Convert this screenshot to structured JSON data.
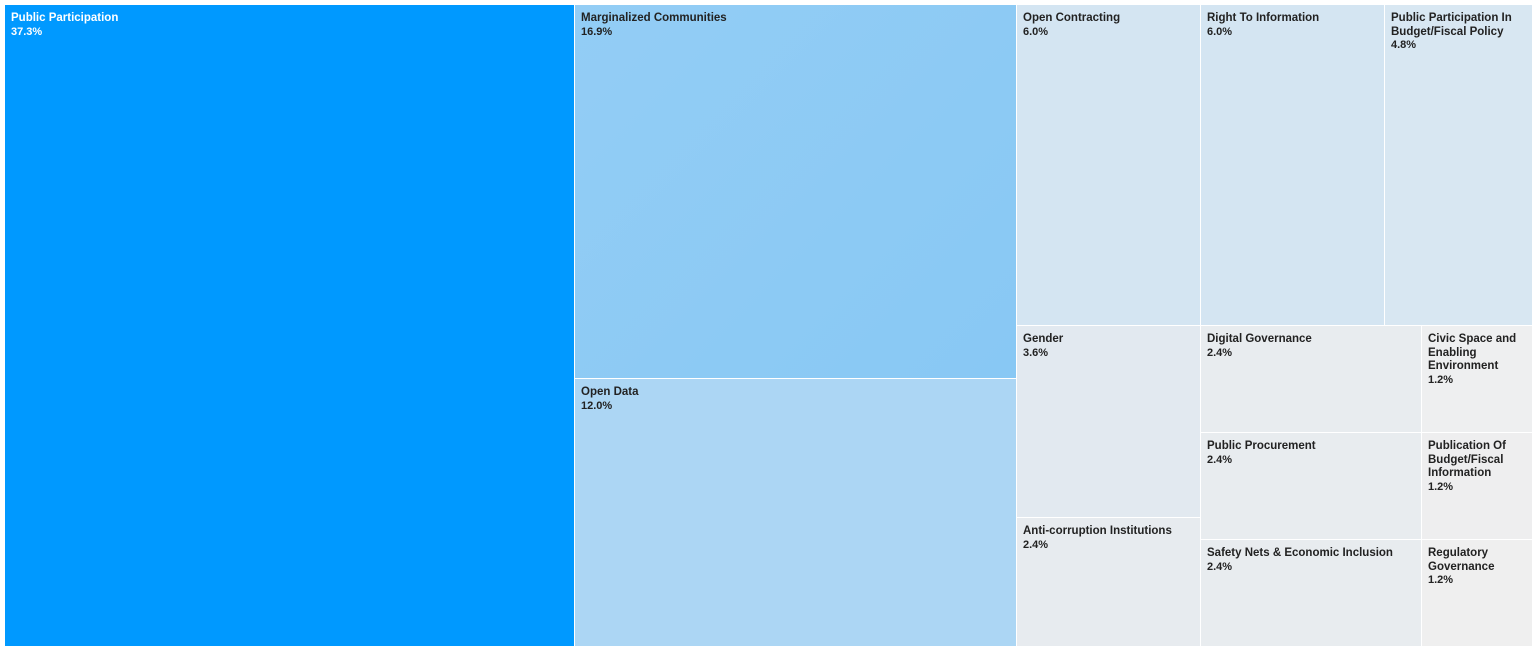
{
  "chart_data": {
    "type": "treemap",
    "items": [
      {
        "label": "Public Participation",
        "value": 37.3,
        "display": "37.3%",
        "color": "#0099ff"
      },
      {
        "label": "Marginalized Communities",
        "value": 16.9,
        "display": "16.9%",
        "color": "#8ecaf5"
      },
      {
        "label": "Open Data",
        "value": 12.0,
        "display": "12.0%",
        "color": "#acd6f4"
      },
      {
        "label": "Open Contracting",
        "value": 6.0,
        "display": "6.0%",
        "color": "#d4e5f2"
      },
      {
        "label": "Right To Information",
        "value": 6.0,
        "display": "6.0%",
        "color": "#d4e5f2"
      },
      {
        "label": "Public Participation In Budget/Fiscal Policy",
        "value": 4.8,
        "display": "4.8%",
        "color": "#d8e7f2"
      },
      {
        "label": "Gender",
        "value": 3.6,
        "display": "3.6%",
        "color": "#e2e9f0"
      },
      {
        "label": "Anti-corruption Institutions",
        "value": 2.4,
        "display": "2.4%",
        "color": "#e7ebef"
      },
      {
        "label": "Digital Governance",
        "value": 2.4,
        "display": "2.4%",
        "color": "#e8ecef"
      },
      {
        "label": "Public Procurement",
        "value": 2.4,
        "display": "2.4%",
        "color": "#e8ecef"
      },
      {
        "label": "Safety Nets & Economic Inclusion",
        "value": 2.4,
        "display": "2.4%",
        "color": "#e8ecef"
      },
      {
        "label": "Civic Space and Enabling Environment",
        "value": 1.2,
        "display": "1.2%",
        "color": "#eeeff0"
      },
      {
        "label": "Publication Of Budget/Fiscal Information",
        "value": 1.2,
        "display": "1.2%",
        "color": "#eeeeef"
      },
      {
        "label": "Regulatory Governance",
        "value": 1.2,
        "display": "1.2%",
        "color": "#efefef"
      }
    ]
  }
}
